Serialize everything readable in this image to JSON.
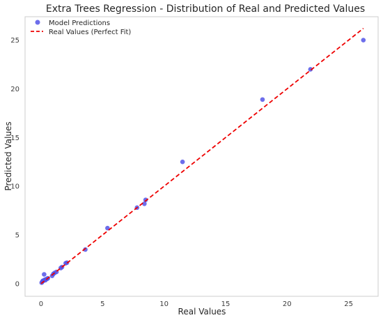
{
  "chart_data": {
    "type": "scatter",
    "title": "Extra Trees Regression - Distribution of Real and Predicted Values",
    "xlabel": "Real Values",
    "ylabel": "Predicted Values",
    "xlim": [
      -1.3,
      27.4
    ],
    "ylim": [
      -1.3,
      27.4
    ],
    "xticks": [
      0,
      5,
      10,
      15,
      20,
      25
    ],
    "yticks": [
      0,
      5,
      10,
      15,
      20,
      25
    ],
    "xtick_labels": [
      "0",
      "5",
      "10",
      "15",
      "20",
      "25"
    ],
    "ytick_labels": [
      "0",
      "5",
      "10",
      "15",
      "20",
      "25"
    ],
    "grid": false,
    "legend_position": "top-left",
    "series": [
      {
        "name": "Model Predictions",
        "kind": "scatter",
        "color": "#5355e8",
        "points": [
          [
            0.05,
            0.1
          ],
          [
            0.1,
            0.2
          ],
          [
            0.15,
            0.3
          ],
          [
            0.2,
            0.3
          ],
          [
            0.3,
            0.4
          ],
          [
            0.35,
            0.35
          ],
          [
            0.4,
            0.45
          ],
          [
            0.5,
            0.5
          ],
          [
            0.55,
            0.55
          ],
          [
            0.25,
            0.95
          ],
          [
            0.9,
            0.8
          ],
          [
            1.0,
            1.0
          ],
          [
            1.1,
            1.1
          ],
          [
            1.25,
            1.2
          ],
          [
            1.6,
            1.6
          ],
          [
            1.7,
            1.7
          ],
          [
            2.0,
            2.1
          ],
          [
            2.1,
            2.15
          ],
          [
            3.6,
            3.5
          ],
          [
            5.4,
            5.7
          ],
          [
            7.8,
            7.8
          ],
          [
            8.4,
            8.2
          ],
          [
            8.5,
            8.6
          ],
          [
            11.5,
            12.5
          ],
          [
            18.0,
            18.9
          ],
          [
            21.9,
            22.0
          ],
          [
            26.2,
            25.0
          ]
        ]
      },
      {
        "name": "Real Values (Perfect Fit)",
        "kind": "line",
        "style": "dashed",
        "color": "#ee0000",
        "points": [
          [
            0.0,
            0.0
          ],
          [
            26.2,
            26.2
          ]
        ]
      }
    ]
  }
}
